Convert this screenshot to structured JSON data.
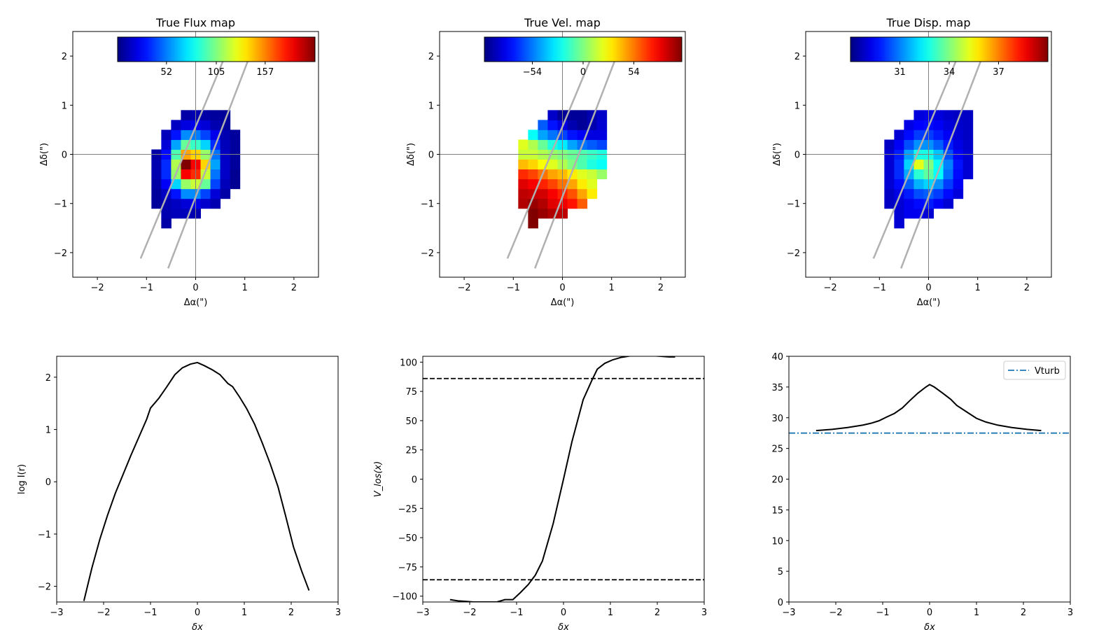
{
  "chart_data": [
    {
      "type": "heatmap",
      "title": "True Flux map",
      "xlabel": "Δα(\")",
      "ylabel": "Δδ(\")",
      "xlim": [
        -2.5,
        2.5
      ],
      "ylim": [
        -2.5,
        2.5
      ],
      "xticks": [
        -2,
        -1,
        0,
        1,
        2
      ],
      "yticks": [
        -2,
        -1,
        0,
        1,
        2
      ],
      "xticklabels": [
        "−2",
        "−1",
        "0",
        "1",
        "2"
      ],
      "yticklabels": [
        "−2",
        "−1",
        "0",
        "1",
        "2"
      ],
      "colormap": "jet",
      "colorbar": {
        "vmin": 0,
        "vmax": 210,
        "ticks": [
          52,
          105,
          157
        ],
        "ticklabels": [
          "52",
          "105",
          "157"
        ]
      },
      "pixel_size": 0.2,
      "grid_x_start": -0.9,
      "grid_y_start": -1.5,
      "rows": [
        [
          null,
          8,
          null,
          null,
          null,
          null,
          null,
          null,
          null
        ],
        [
          null,
          10,
          12,
          12,
          10,
          null,
          null,
          null,
          null
        ],
        [
          6,
          10,
          14,
          18,
          22,
          16,
          10,
          null,
          null
        ],
        [
          6,
          14,
          30,
          55,
          55,
          40,
          18,
          8,
          null
        ],
        [
          8,
          25,
          70,
          110,
          120,
          100,
          40,
          12,
          4
        ],
        [
          10,
          35,
          110,
          185,
          175,
          120,
          50,
          15,
          4
        ],
        [
          10,
          35,
          115,
          210,
          185,
          140,
          60,
          15,
          6
        ],
        [
          8,
          28,
          95,
          150,
          140,
          110,
          50,
          14,
          6
        ],
        [
          null,
          18,
          60,
          100,
          90,
          70,
          35,
          12,
          6
        ],
        [
          null,
          12,
          30,
          55,
          52,
          40,
          22,
          10,
          6
        ],
        [
          null,
          null,
          14,
          20,
          22,
          18,
          10,
          6,
          null
        ],
        [
          null,
          null,
          null,
          8,
          10,
          8,
          6,
          5,
          null
        ]
      ],
      "slit_lines": [
        {
          "x": [
            -1.12,
            0.62
          ],
          "y": [
            -2.12,
            2.05
          ]
        },
        {
          "x": [
            -0.56,
            1.12
          ],
          "y": [
            -2.32,
            2.05
          ]
        }
      ]
    },
    {
      "type": "heatmap",
      "title": "True Vel. map",
      "xlabel": "Δα(\")",
      "ylabel": "Δδ(\")",
      "xlim": [
        -2.5,
        2.5
      ],
      "ylim": [
        -2.5,
        2.5
      ],
      "xticks": [
        -2,
        -1,
        0,
        1,
        2
      ],
      "yticks": [
        -2,
        -1,
        0,
        1,
        2
      ],
      "xticklabels": [
        "−2",
        "−1",
        "0",
        "1",
        "2"
      ],
      "yticklabels": [
        "−2",
        "−1",
        "0",
        "1",
        "2"
      ],
      "colormap": "jet",
      "colorbar": {
        "vmin": -105,
        "vmax": 105,
        "ticks": [
          -54,
          0,
          54
        ],
        "ticklabels": [
          "−54",
          "0",
          "54"
        ]
      },
      "pixel_size": 0.2,
      "grid_x_start": -0.9,
      "grid_y_start": -1.5,
      "rows": [
        [
          null,
          105,
          null,
          null,
          null,
          null,
          null,
          null,
          null
        ],
        [
          null,
          105,
          100,
          95,
          92,
          null,
          null,
          null,
          null
        ],
        [
          95,
          100,
          95,
          85,
          82,
          75,
          60,
          null,
          null
        ],
        [
          92,
          90,
          88,
          80,
          72,
          62,
          45,
          30,
          null
        ],
        [
          85,
          80,
          72,
          65,
          55,
          45,
          30,
          20,
          null
        ],
        [
          70,
          65,
          55,
          45,
          40,
          30,
          20,
          15,
          5
        ],
        [
          40,
          35,
          25,
          20,
          10,
          0,
          -10,
          -20,
          -25
        ],
        [
          15,
          15,
          10,
          5,
          0,
          -5,
          -10,
          -15,
          -20
        ],
        [
          20,
          10,
          -5,
          -20,
          -30,
          -45,
          -55,
          -60,
          -65
        ],
        [
          null,
          -25,
          -45,
          -55,
          -65,
          -75,
          -80,
          -85,
          -85
        ],
        [
          null,
          null,
          -60,
          -75,
          -85,
          -95,
          -100,
          -95,
          -88
        ],
        [
          null,
          null,
          null,
          -90,
          -100,
          -100,
          -100,
          -95,
          -90
        ]
      ],
      "slit_lines": [
        {
          "x": [
            -1.12,
            0.62
          ],
          "y": [
            -2.12,
            2.05
          ]
        },
        {
          "x": [
            -0.56,
            1.12
          ],
          "y": [
            -2.32,
            2.05
          ]
        }
      ]
    },
    {
      "type": "heatmap",
      "title": "True Disp. map",
      "xlabel": "Δα(\")",
      "ylabel": "Δδ(\")",
      "xlim": [
        -2.5,
        2.5
      ],
      "ylim": [
        -2.5,
        2.5
      ],
      "xticks": [
        -2,
        -1,
        0,
        1,
        2
      ],
      "yticks": [
        -2,
        -1,
        0,
        1,
        2
      ],
      "xticklabels": [
        "−2",
        "−1",
        "0",
        "1",
        "2"
      ],
      "yticklabels": [
        "−2",
        "−1",
        "0",
        "1",
        "2"
      ],
      "colormap": "jet",
      "colorbar": {
        "vmin": 28,
        "vmax": 40,
        "ticks": [
          31,
          34,
          37
        ],
        "ticklabels": [
          "31",
          "34",
          "37"
        ]
      },
      "pixel_size": 0.2,
      "grid_x_start": -0.9,
      "grid_y_start": -1.5,
      "rows": [
        [
          null,
          29,
          null,
          null,
          null,
          null,
          null,
          null,
          null
        ],
        [
          null,
          29,
          29.3,
          29.3,
          29,
          null,
          null,
          null,
          null
        ],
        [
          28.8,
          29,
          29.3,
          29.6,
          29.8,
          29.4,
          29,
          null,
          null
        ],
        [
          28.8,
          29.2,
          29.8,
          30.4,
          30.6,
          30.2,
          29.6,
          29.1,
          null
        ],
        [
          29,
          29.6,
          30.6,
          31.6,
          32,
          31.2,
          30.2,
          29.4,
          null
        ],
        [
          29,
          30,
          31.5,
          33,
          33.6,
          32.5,
          30.8,
          29.6,
          29
        ],
        [
          29,
          30,
          32,
          35.2,
          34,
          32.6,
          31,
          29.7,
          29
        ],
        [
          29,
          29.8,
          31.4,
          32.8,
          32.8,
          31.8,
          30.4,
          29.4,
          29
        ],
        [
          28.8,
          29.4,
          30.4,
          31.2,
          31.2,
          30.6,
          29.8,
          29.2,
          28.9
        ],
        [
          null,
          29,
          29.6,
          30.2,
          30.2,
          29.8,
          29.4,
          29,
          28.8
        ],
        [
          null,
          null,
          29.2,
          29.5,
          29.6,
          29.4,
          29.1,
          28.9,
          28.8
        ],
        [
          null,
          null,
          null,
          29.1,
          29.2,
          29.1,
          28.9,
          28.8,
          28.8
        ]
      ],
      "slit_lines": [
        {
          "x": [
            -1.12,
            0.62
          ],
          "y": [
            -2.12,
            2.05
          ]
        },
        {
          "x": [
            -0.56,
            1.12
          ],
          "y": [
            -2.32,
            2.05
          ]
        }
      ]
    },
    {
      "type": "line",
      "title": "",
      "xlabel": "δx",
      "ylabel": "log I(r)",
      "xlim": [
        -3,
        3
      ],
      "ylim": [
        -2.3,
        2.4
      ],
      "xticks": [
        -3,
        -2,
        -1,
        0,
        1,
        2,
        3
      ],
      "yticks": [
        -2,
        -1,
        0,
        1,
        2
      ],
      "xticklabels": [
        "−3",
        "−2",
        "−1",
        "0",
        "1",
        "2",
        "3"
      ],
      "yticklabels": [
        "−2",
        "−1",
        "0",
        "1",
        "2"
      ],
      "series": [
        {
          "color": "#000000",
          "style": "solid",
          "x": [
            -2.42,
            -2.25,
            -2.08,
            -1.92,
            -1.75,
            -1.58,
            -1.42,
            -1.25,
            -1.08,
            -1.0,
            -0.82,
            -0.65,
            -0.48,
            -0.32,
            -0.15,
            0.0,
            0.15,
            0.32,
            0.48,
            0.65,
            0.75,
            0.9,
            1.05,
            1.22,
            1.38,
            1.55,
            1.72,
            1.88,
            2.05,
            2.22,
            2.38
          ],
          "y": [
            -2.28,
            -1.65,
            -1.1,
            -0.65,
            -0.22,
            0.15,
            0.5,
            0.85,
            1.2,
            1.41,
            1.6,
            1.82,
            2.05,
            2.18,
            2.25,
            2.28,
            2.22,
            2.14,
            2.05,
            1.88,
            1.82,
            1.62,
            1.4,
            1.1,
            0.75,
            0.35,
            -0.1,
            -0.65,
            -1.25,
            -1.7,
            -2.08
          ]
        }
      ]
    },
    {
      "type": "line",
      "title": "",
      "xlabel": "δx",
      "ylabel": "V_los(x)",
      "xlim": [
        -3,
        3
      ],
      "ylim": [
        -105,
        105
      ],
      "xticks": [
        -3,
        -2,
        -1,
        0,
        1,
        2,
        3
      ],
      "yticks": [
        -100,
        -75,
        -50,
        -25,
        0,
        25,
        50,
        75,
        100
      ],
      "xticklabels": [
        "−3",
        "−2",
        "−1",
        "0",
        "1",
        "2",
        "3"
      ],
      "yticklabels": [
        "−100",
        "−75",
        "−50",
        "−25",
        "0",
        "25",
        "50",
        "75",
        "100"
      ],
      "series": [
        {
          "color": "#000000",
          "style": "solid",
          "x": [
            -2.42,
            -2.25,
            -2.08,
            -1.92,
            -1.75,
            -1.58,
            -1.42,
            -1.25,
            -1.08,
            -0.92,
            -0.75,
            -0.6,
            -0.45,
            -0.22,
            0.0,
            0.18,
            0.42,
            0.6,
            0.72,
            0.88,
            1.05,
            1.22,
            1.45,
            1.65,
            1.88,
            2.08,
            2.25,
            2.38
          ],
          "y": [
            -103,
            -104,
            -104.5,
            -105,
            -105,
            -105,
            -105,
            -103,
            -103,
            -97,
            -90,
            -82,
            -70,
            -38,
            0,
            32,
            68,
            84,
            94,
            99,
            102,
            104,
            105.5,
            106,
            105.5,
            105,
            104.5,
            104.5
          ]
        },
        {
          "color": "#000000",
          "style": "dashed",
          "x": [
            -3,
            3
          ],
          "y": [
            86,
            86
          ]
        },
        {
          "color": "#000000",
          "style": "dashed",
          "x": [
            -3,
            3
          ],
          "y": [
            -86,
            -86
          ]
        }
      ]
    },
    {
      "type": "line",
      "title": "",
      "xlabel": "δx",
      "ylabel": "",
      "xlim": [
        -3,
        3
      ],
      "ylim": [
        0,
        40
      ],
      "xticks": [
        -3,
        -2,
        -1,
        0,
        1,
        2,
        3
      ],
      "yticks": [
        0,
        5,
        10,
        15,
        20,
        25,
        30,
        35,
        40
      ],
      "xticklabels": [
        "−3",
        "−2",
        "−1",
        "0",
        "1",
        "2",
        "3"
      ],
      "yticklabels": [
        "0",
        "5",
        "10",
        "15",
        "20",
        "25",
        "30",
        "35",
        "40"
      ],
      "legend": {
        "location": "top-right",
        "entries": [
          "Vturb"
        ]
      },
      "series": [
        {
          "color": "#000000",
          "style": "solid",
          "x": [
            -2.42,
            -2.08,
            -1.75,
            -1.42,
            -1.25,
            -1.08,
            -0.92,
            -0.75,
            -0.58,
            -0.42,
            -0.25,
            -0.08,
            0.0,
            0.1,
            0.28,
            0.45,
            0.58,
            0.82,
            1.0,
            1.2,
            1.45,
            1.75,
            2.08,
            2.38
          ],
          "y": [
            27.9,
            28.1,
            28.4,
            28.8,
            29.1,
            29.5,
            30.1,
            30.7,
            31.6,
            32.8,
            34.0,
            35.0,
            35.4,
            35.0,
            34.0,
            33.0,
            32.0,
            30.8,
            29.9,
            29.3,
            28.8,
            28.4,
            28.1,
            27.9
          ]
        },
        {
          "name": "Vturb",
          "color": "#1f77b4",
          "style": "dashdot",
          "x": [
            -3,
            3
          ],
          "y": [
            27.5,
            27.5
          ]
        }
      ]
    }
  ]
}
